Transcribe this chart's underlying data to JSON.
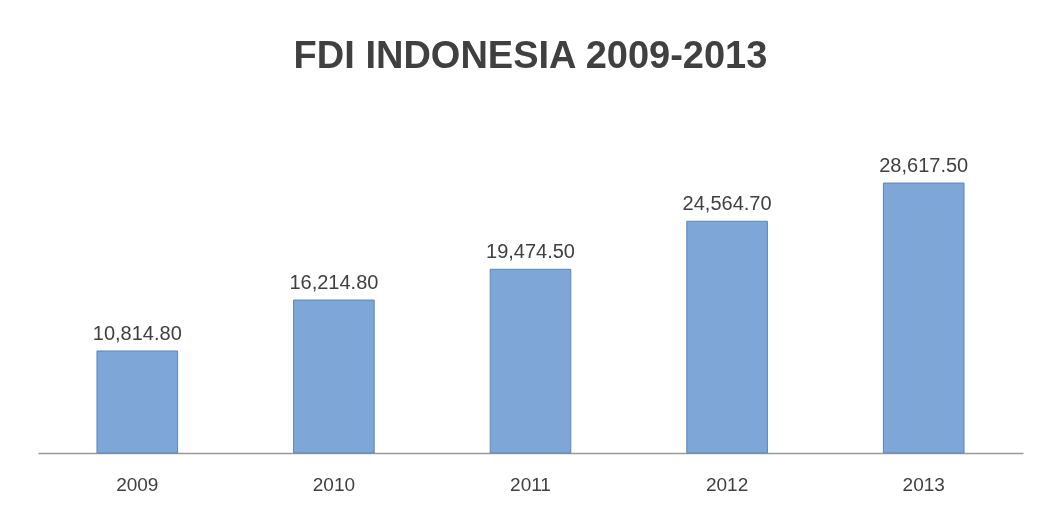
{
  "chart_data": {
    "type": "bar",
    "title": "FDI INDONESIA 2009-2013",
    "categories": [
      "2009",
      "2010",
      "2011",
      "2012",
      "2013"
    ],
    "values": [
      10814.8,
      16214.8,
      19474.5,
      24564.7,
      28617.5
    ],
    "value_labels": [
      "10,814.80",
      "16,214.80",
      "19,474.50",
      "24,564.70",
      "28,617.50"
    ],
    "color": "#7ea6d6"
  }
}
